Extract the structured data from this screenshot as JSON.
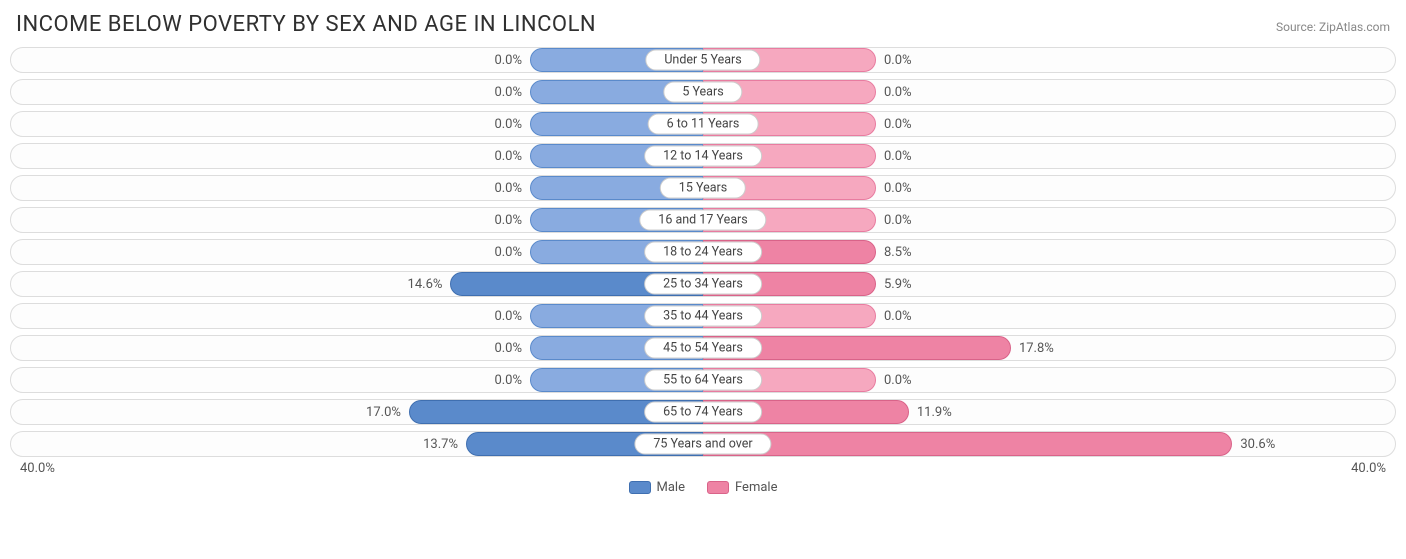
{
  "title": "INCOME BELOW POVERTY BY SEX AND AGE IN LINCOLN",
  "source": "Source: ZipAtlas.com",
  "axis_max": 40.0,
  "axis_label_left": "40.0%",
  "axis_label_right": "40.0%",
  "min_bar_pct": 10.0,
  "colors": {
    "male_fill": "#89abe0",
    "male_border": "#5a8acb",
    "male_strong_fill": "#5a8acb",
    "male_strong_border": "#3f6fb0",
    "female_fill": "#f6a8bf",
    "female_border": "#e87ca0",
    "female_strong_fill": "#ee83a4",
    "female_strong_border": "#d96389",
    "row_border": "#dddddd",
    "text": "#555555",
    "title_text": "#303030",
    "source_text": "#888888",
    "background": "#ffffff"
  },
  "legend": {
    "male": "Male",
    "female": "Female"
  },
  "rows": [
    {
      "label": "Under 5 Years",
      "male": 0.0,
      "female": 0.0
    },
    {
      "label": "5 Years",
      "male": 0.0,
      "female": 0.0
    },
    {
      "label": "6 to 11 Years",
      "male": 0.0,
      "female": 0.0
    },
    {
      "label": "12 to 14 Years",
      "male": 0.0,
      "female": 0.0
    },
    {
      "label": "15 Years",
      "male": 0.0,
      "female": 0.0
    },
    {
      "label": "16 and 17 Years",
      "male": 0.0,
      "female": 0.0
    },
    {
      "label": "18 to 24 Years",
      "male": 0.0,
      "female": 8.5
    },
    {
      "label": "25 to 34 Years",
      "male": 14.6,
      "female": 5.9
    },
    {
      "label": "35 to 44 Years",
      "male": 0.0,
      "female": 0.0
    },
    {
      "label": "45 to 54 Years",
      "male": 0.0,
      "female": 17.8
    },
    {
      "label": "55 to 64 Years",
      "male": 0.0,
      "female": 0.0
    },
    {
      "label": "65 to 74 Years",
      "male": 17.0,
      "female": 11.9
    },
    {
      "label": "75 Years and over",
      "male": 13.7,
      "female": 30.6
    }
  ]
}
